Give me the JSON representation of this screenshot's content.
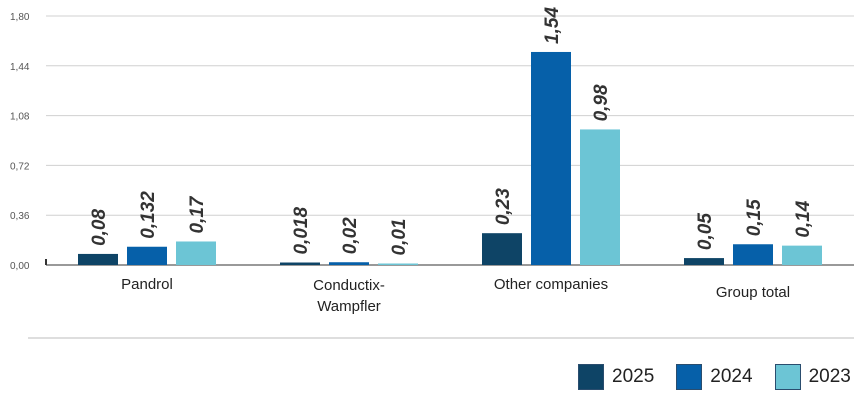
{
  "chart_data": {
    "type": "bar",
    "categories": [
      [
        "Pandrol"
      ],
      [
        "Conductix-",
        "Wampfler"
      ],
      [
        "Other companies"
      ],
      [
        "Group total"
      ]
    ],
    "series": [
      {
        "name": "2025",
        "color": "#0e4466",
        "values": [
          0.08,
          0.018,
          0.23,
          0.05
        ],
        "labels": [
          "0,08",
          "0,018",
          "0,23",
          "0,05"
        ]
      },
      {
        "name": "2024",
        "color": "#0660a9",
        "values": [
          0.132,
          0.02,
          1.54,
          0.15
        ],
        "labels": [
          "0,132",
          "0,02",
          "1,54",
          "0,15"
        ]
      },
      {
        "name": "2023",
        "color": "#6cc5d5",
        "values": [
          0.17,
          0.01,
          0.98,
          0.14
        ],
        "labels": [
          "0,17",
          "0,01",
          "0,98",
          "0,14"
        ]
      }
    ],
    "yticks": [
      0,
      0.36,
      0.72,
      1.08,
      1.44,
      1.8
    ],
    "ytick_labels": [
      "0,00",
      "0,36",
      "0,72",
      "1,08",
      "1,44",
      "1,80"
    ],
    "ylim": [
      0,
      1.8
    ],
    "grid": true,
    "legend_position": "bottom-right"
  }
}
